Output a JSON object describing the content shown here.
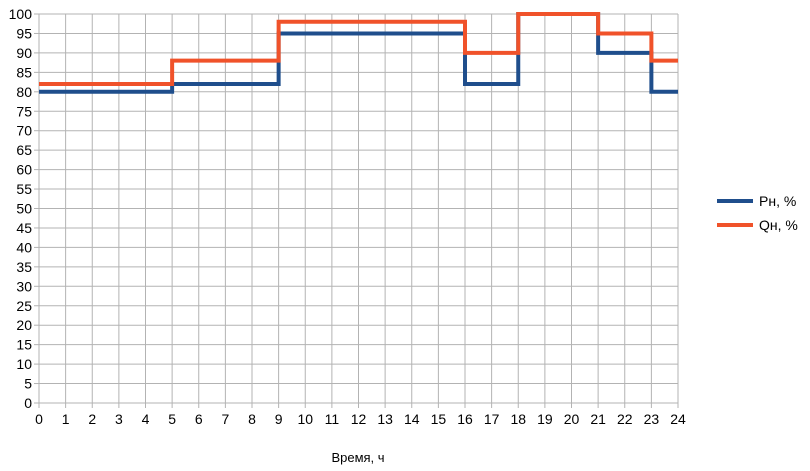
{
  "chart_data": {
    "type": "line",
    "step": true,
    "xlabel": "Время, ч",
    "ylabel": "",
    "xlim": [
      0,
      24
    ],
    "ylim": [
      0,
      100
    ],
    "x_ticks": [
      "0",
      "1",
      "2",
      "3",
      "4",
      "5",
      "6",
      "7",
      "8",
      "9",
      "10",
      "11",
      "12",
      "13",
      "14",
      "15",
      "16",
      "17",
      "18",
      "19",
      "20",
      "21",
      "22",
      "23",
      "24"
    ],
    "y_ticks": [
      "0",
      "5",
      "10",
      "15",
      "20",
      "25",
      "30",
      "35",
      "40",
      "45",
      "50",
      "55",
      "60",
      "65",
      "70",
      "75",
      "80",
      "85",
      "90",
      "95",
      "100"
    ],
    "grid": true,
    "legend_position": "right",
    "series": [
      {
        "name": "Рн, %",
        "color": "#1f4e8c",
        "points": [
          [
            0,
            80
          ],
          [
            5,
            80
          ],
          [
            5,
            82
          ],
          [
            9,
            82
          ],
          [
            9,
            95
          ],
          [
            16,
            95
          ],
          [
            16,
            82
          ],
          [
            18,
            82
          ],
          [
            18,
            100
          ],
          [
            21,
            100
          ],
          [
            21,
            90
          ],
          [
            23,
            90
          ],
          [
            23,
            80
          ],
          [
            24,
            80
          ]
        ]
      },
      {
        "name": "Qн, %",
        "color": "#f0522a",
        "points": [
          [
            0,
            82
          ],
          [
            5,
            82
          ],
          [
            5,
            88
          ],
          [
            9,
            88
          ],
          [
            9,
            98
          ],
          [
            16,
            98
          ],
          [
            16,
            90
          ],
          [
            18,
            90
          ],
          [
            18,
            100
          ],
          [
            21,
            100
          ],
          [
            21,
            95
          ],
          [
            23,
            95
          ],
          [
            23,
            88
          ],
          [
            24,
            88
          ]
        ]
      }
    ]
  }
}
